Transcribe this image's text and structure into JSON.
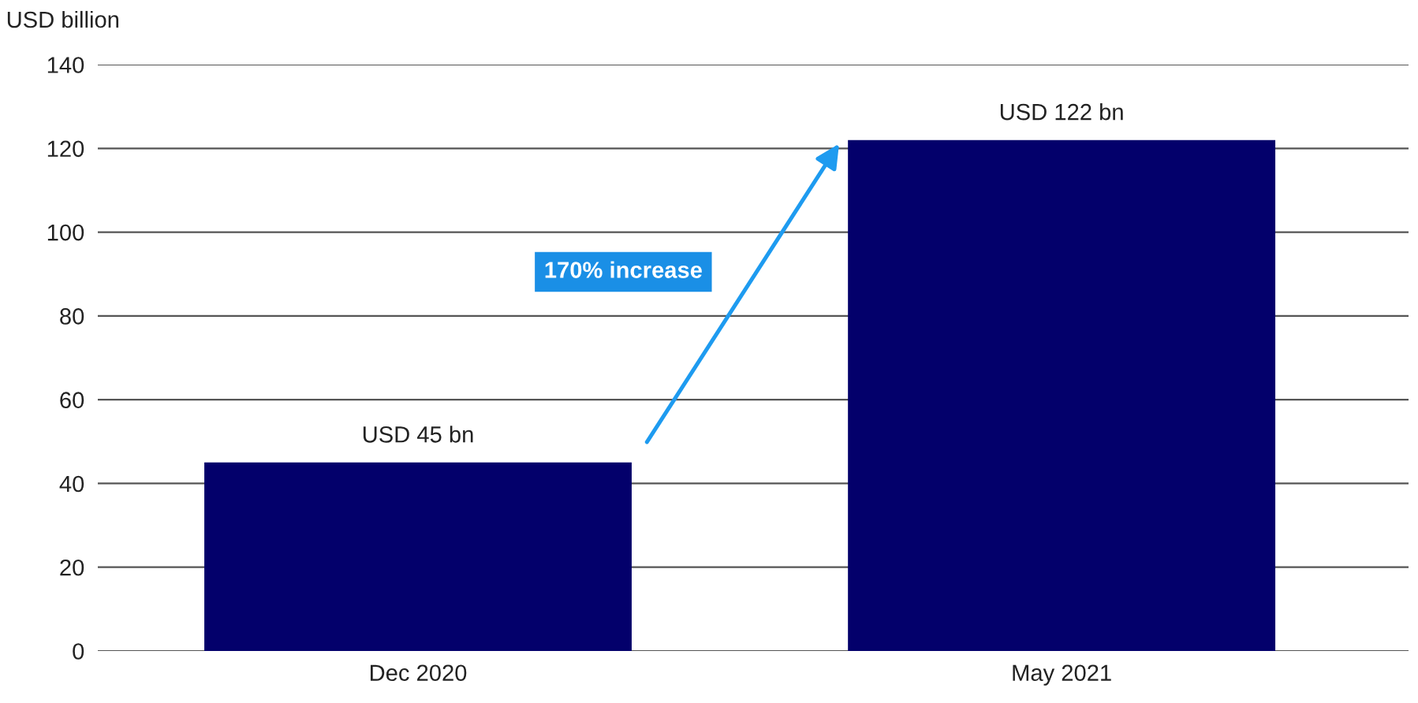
{
  "chart_data": {
    "type": "bar",
    "ylabel": "USD billion",
    "categories": [
      "Dec 2020",
      "May 2021"
    ],
    "values": [
      45,
      122
    ],
    "value_labels": [
      "USD 45 bn",
      "USD 122 bn"
    ],
    "color": "#03006b",
    "ylim": [
      0,
      140
    ],
    "yticks": [
      0,
      20,
      40,
      60,
      80,
      100,
      120,
      140
    ],
    "grid": "y",
    "annotations": [
      "170% increase"
    ]
  }
}
